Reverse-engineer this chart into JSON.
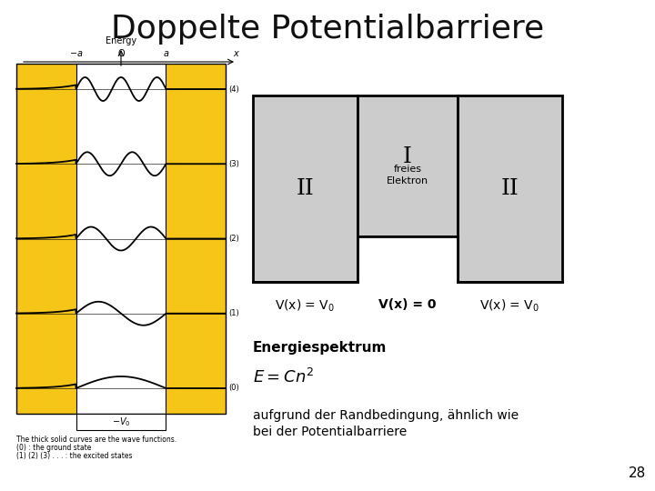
{
  "title": "Doppelte Potentialbarriere",
  "title_fontsize": 26,
  "background_color": "#ffffff",
  "barrier_color": "#cccccc",
  "yellow_color": "#f5c518",
  "region_labels": [
    "II",
    "I",
    "II"
  ],
  "region_sublabel": "freies\nElektron",
  "eq_left": "V(x) = V",
  "eq_center": "V(x) = 0",
  "eq_right": "V(x) = V",
  "energy_label": "Energiespektrum",
  "bottom_text_line1": "aufgrund der Randbedingung, ähnlich wie",
  "bottom_text_line2": "bei der Potentialbarriere",
  "page_number": "28",
  "caption1": "The thick solid curves are the wave functions.",
  "caption2": "(0) : the ground state",
  "caption3": "(1) (2) (3) . . . : the excited states",
  "level_labels": [
    "(4)",
    "(3)",
    "(2)",
    "(1)",
    "(0)"
  ]
}
